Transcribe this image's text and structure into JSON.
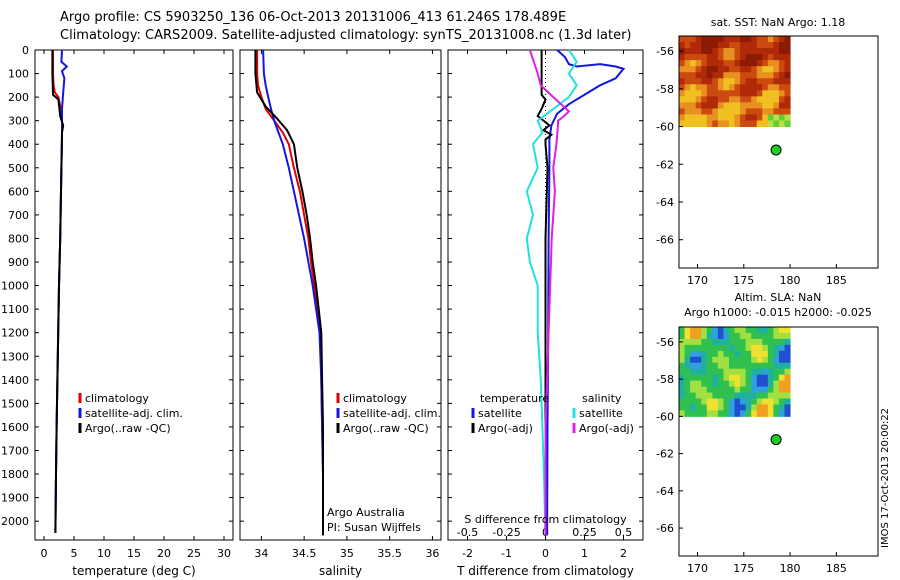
{
  "header": {
    "line1": "Argo profile: CS 5903250_136 06-Oct-2013 20131006_413 61.246S 178.489E",
    "line2": "Climatology: CARS2009. Satellite-adjusted climatology: synTS_20131008.nc (1.3d later)"
  },
  "stamp": "IMOS 17-Oct-2013 20:00:22",
  "colors": {
    "climatology": "#e00000",
    "satellite": "#1515e0",
    "argo": "#000000",
    "salinity_satellite": "#20e0e0",
    "salinity_argo": "#e020e0",
    "map_marker": "#22cc22"
  },
  "chart_data": [
    {
      "id": "temperature",
      "type": "line",
      "xlabel": "temperature (deg C)",
      "ylabel": "",
      "xlim": [
        -1.5,
        31.5
      ],
      "ylim": [
        0,
        2080
      ],
      "y_inverted": true,
      "xticks": [
        0,
        5,
        10,
        15,
        20,
        25,
        30
      ],
      "yticks": [
        0,
        100,
        200,
        300,
        400,
        500,
        600,
        700,
        800,
        900,
        1000,
        1100,
        1200,
        1300,
        1400,
        1500,
        1600,
        1700,
        1800,
        1900,
        2000
      ],
      "legend": {
        "position": "lower-right",
        "items": [
          "climatology",
          "satellite-adj. clim.",
          "Argo(..raw -QC)"
        ]
      },
      "series": [
        {
          "name": "climatology",
          "color_key": "climatology",
          "points": [
            [
              1.5,
              0
            ],
            [
              1.5,
              100
            ],
            [
              1.6,
              150
            ],
            [
              1.8,
              180
            ],
            [
              2.4,
              200
            ],
            [
              2.8,
              250
            ],
            [
              3.0,
              300
            ],
            [
              3.0,
              350
            ],
            [
              2.9,
              500
            ],
            [
              2.7,
              800
            ],
            [
              2.5,
              1000
            ],
            [
              2.3,
              1300
            ],
            [
              2.1,
              1600
            ],
            [
              2.0,
              1800
            ],
            [
              1.9,
              2050
            ]
          ]
        },
        {
          "name": "satellite-adj. clim.",
          "color_key": "satellite",
          "points": [
            [
              3.0,
              0
            ],
            [
              2.9,
              50
            ],
            [
              3.8,
              70
            ],
            [
              3.0,
              90
            ],
            [
              3.4,
              120
            ],
            [
              3.2,
              180
            ],
            [
              3.0,
              250
            ],
            [
              3.0,
              300
            ],
            [
              3.0,
              350
            ],
            [
              2.9,
              500
            ],
            [
              2.7,
              800
            ],
            [
              2.5,
              1000
            ],
            [
              2.3,
              1300
            ],
            [
              2.1,
              1600
            ],
            [
              2.0,
              1800
            ],
            [
              1.9,
              2050
            ]
          ]
        },
        {
          "name": "Argo(..raw -QC)",
          "color_key": "argo",
          "points": [
            [
              1.4,
              0
            ],
            [
              1.4,
              100
            ],
            [
              1.5,
              190
            ],
            [
              2.4,
              210
            ],
            [
              2.7,
              280
            ],
            [
              3.2,
              320
            ],
            [
              3.0,
              350
            ],
            [
              3.0,
              380
            ],
            [
              2.9,
              500
            ],
            [
              2.7,
              800
            ],
            [
              2.5,
              1000
            ],
            [
              2.3,
              1300
            ],
            [
              2.1,
              1600
            ],
            [
              2.0,
              1800
            ],
            [
              1.9,
              2050
            ]
          ]
        }
      ]
    },
    {
      "id": "salinity",
      "type": "line",
      "xlabel": "salinity",
      "ylabel": "",
      "xlim": [
        33.75,
        36.1
      ],
      "ylim": [
        0,
        2080
      ],
      "y_inverted": true,
      "xticks": [
        34,
        34.5,
        35,
        35.5,
        36
      ],
      "legend": {
        "position": "lower-right",
        "items": [
          "climatology",
          "satellite-adj. clim.",
          "Argo(..raw -QC)"
        ]
      },
      "annotations": [
        "Argo Australia",
        "PI: Susan Wijffels"
      ],
      "series": [
        {
          "name": "climatology",
          "color_key": "climatology",
          "points": [
            [
              33.95,
              0
            ],
            [
              33.95,
              100
            ],
            [
              33.96,
              150
            ],
            [
              34.0,
              200
            ],
            [
              34.05,
              250
            ],
            [
              34.15,
              300
            ],
            [
              34.25,
              350
            ],
            [
              34.32,
              400
            ],
            [
              34.38,
              500
            ],
            [
              34.45,
              600
            ],
            [
              34.5,
              700
            ],
            [
              34.55,
              800
            ],
            [
              34.58,
              900
            ],
            [
              34.62,
              1000
            ],
            [
              34.66,
              1100
            ],
            [
              34.69,
              1200
            ],
            [
              34.7,
              1400
            ],
            [
              34.71,
              1600
            ],
            [
              34.72,
              1800
            ],
            [
              34.72,
              2060
            ]
          ]
        },
        {
          "name": "satellite-adj. clim.",
          "color_key": "satellite",
          "points": [
            [
              34.02,
              0
            ],
            [
              34.03,
              100
            ],
            [
              34.05,
              150
            ],
            [
              34.08,
              200
            ],
            [
              34.12,
              260
            ],
            [
              34.15,
              300
            ],
            [
              34.2,
              350
            ],
            [
              34.25,
              400
            ],
            [
              34.32,
              500
            ],
            [
              34.38,
              600
            ],
            [
              34.44,
              700
            ],
            [
              34.5,
              800
            ],
            [
              34.55,
              900
            ],
            [
              34.6,
              1000
            ],
            [
              34.64,
              1100
            ],
            [
              34.68,
              1200
            ],
            [
              34.7,
              1400
            ],
            [
              34.71,
              1600
            ],
            [
              34.72,
              1800
            ],
            [
              34.72,
              2060
            ]
          ]
        },
        {
          "name": "Argo(..raw -QC)",
          "color_key": "argo",
          "points": [
            [
              33.93,
              0
            ],
            [
              33.93,
              100
            ],
            [
              33.95,
              180
            ],
            [
              34.05,
              240
            ],
            [
              34.18,
              290
            ],
            [
              34.3,
              340
            ],
            [
              34.38,
              400
            ],
            [
              34.42,
              500
            ],
            [
              34.48,
              600
            ],
            [
              34.53,
              700
            ],
            [
              34.57,
              800
            ],
            [
              34.6,
              900
            ],
            [
              34.64,
              1000
            ],
            [
              34.67,
              1100
            ],
            [
              34.7,
              1200
            ],
            [
              34.71,
              1400
            ],
            [
              34.72,
              1600
            ],
            [
              34.72,
              1800
            ],
            [
              34.72,
              2060
            ]
          ]
        }
      ]
    },
    {
      "id": "difference",
      "type": "line",
      "xlabel": "T difference from climatology",
      "xlabel_top": "S difference from climatology",
      "xlim": [
        -2.5,
        2.5
      ],
      "ylim": [
        0,
        2080
      ],
      "y_inverted": true,
      "xticks": [
        -2,
        -1,
        0,
        1,
        2
      ],
      "xticks_top": [
        -0.5,
        -0.25,
        0,
        0.25,
        0.5
      ],
      "legend": {
        "columns": [
          {
            "title": "temperature",
            "items": [
              "satellite",
              "Argo(-adj)"
            ],
            "color_keys": [
              "satellite",
              "argo"
            ]
          },
          {
            "title": "salinity",
            "items": [
              "satellite",
              "Argo(-adj)"
            ],
            "color_keys": [
              "salinity_satellite",
              "salinity_argo"
            ]
          }
        ]
      },
      "series": [
        {
          "name": "temperature satellite",
          "color_key": "satellite",
          "points": [
            [
              0.3,
              0
            ],
            [
              0.5,
              30
            ],
            [
              0.6,
              60
            ],
            [
              0.8,
              70
            ],
            [
              1.4,
              60
            ],
            [
              1.8,
              70
            ],
            [
              2.0,
              80
            ],
            [
              1.8,
              120
            ],
            [
              1.4,
              150
            ],
            [
              1.1,
              180
            ],
            [
              0.6,
              230
            ],
            [
              0.3,
              270
            ],
            [
              0.15,
              320
            ],
            [
              0.1,
              380
            ],
            [
              0.1,
              500
            ],
            [
              0.08,
              800
            ],
            [
              0.07,
              1200
            ],
            [
              0.05,
              1600
            ],
            [
              0.04,
              2060
            ]
          ]
        },
        {
          "name": "temperature Argo(-adj)",
          "color_key": "argo",
          "points": [
            [
              -0.1,
              0
            ],
            [
              -0.1,
              100
            ],
            [
              -0.1,
              190
            ],
            [
              0.0,
              210
            ],
            [
              -0.1,
              250
            ],
            [
              -0.2,
              280
            ],
            [
              0.1,
              320
            ],
            [
              -0.05,
              340
            ],
            [
              0.15,
              360
            ],
            [
              0.0,
              380
            ],
            [
              0.0,
              400
            ],
            [
              0.05,
              500
            ],
            [
              0.0,
              800
            ],
            [
              0.0,
              1200
            ],
            [
              0.0,
              1600
            ],
            [
              0.0,
              2060
            ]
          ]
        },
        {
          "name": "salinity satellite",
          "color_key": "salinity_satellite",
          "points": [
            [
              0.15,
              0
            ],
            [
              0.2,
              50
            ],
            [
              0.15,
              100
            ],
            [
              0.2,
              150
            ],
            [
              0.15,
              200
            ],
            [
              0.05,
              250
            ],
            [
              -0.05,
              300
            ],
            [
              -0.02,
              350
            ],
            [
              -0.08,
              400
            ],
            [
              -0.05,
              500
            ],
            [
              -0.12,
              600
            ],
            [
              -0.08,
              700
            ],
            [
              -0.12,
              800
            ],
            [
              -0.1,
              900
            ],
            [
              -0.05,
              1000
            ],
            [
              -0.05,
              1200
            ],
            [
              -0.03,
              1400
            ],
            [
              -0.02,
              1600
            ],
            [
              -0.01,
              1800
            ],
            [
              0.0,
              2060
            ]
          ]
        },
        {
          "name": "salinity Argo(-adj)",
          "color_key": "salinity_argo",
          "points": [
            [
              -0.1,
              0
            ],
            [
              -0.05,
              100
            ],
            [
              -0.03,
              150
            ],
            [
              0.05,
              200
            ],
            [
              0.1,
              230
            ],
            [
              0.15,
              260
            ],
            [
              0.12,
              280
            ],
            [
              0.08,
              300
            ],
            [
              0.08,
              320
            ],
            [
              0.07,
              400
            ],
            [
              0.05,
              500
            ],
            [
              0.06,
              600
            ],
            [
              0.04,
              800
            ],
            [
              0.03,
              1000
            ],
            [
              0.02,
              1200
            ],
            [
              0.01,
              1400
            ],
            [
              0.0,
              1600
            ],
            [
              0.0,
              1800
            ],
            [
              0.0,
              2060
            ]
          ]
        }
      ]
    },
    {
      "id": "sst_map",
      "type": "heatmap",
      "title": "sat. SST: NaN Argo: 1.18",
      "xlim": [
        168,
        189.5
      ],
      "ylim": [
        -67.5,
        -55.2
      ],
      "xticks": [
        170,
        175,
        180,
        185
      ],
      "yticks": [
        -56,
        -58,
        -60,
        -62,
        -64,
        -66
      ],
      "data_extent": {
        "lon": [
          168,
          180
        ],
        "lat": [
          -60,
          -55.2
        ]
      },
      "argo_position": {
        "lon": 178.489,
        "lat": -61.246
      }
    },
    {
      "id": "sla_map",
      "type": "heatmap",
      "title": "Altim. SLA: NaN",
      "subtitle": "Argo h1000: -0.015 h2000: -0.025",
      "xlim": [
        168,
        189.5
      ],
      "ylim": [
        -67.5,
        -55.2
      ],
      "xticks": [
        170,
        175,
        180,
        185
      ],
      "yticks": [
        -56,
        -58,
        -60,
        -62,
        -64,
        -66
      ],
      "data_extent": {
        "lon": [
          168,
          180
        ],
        "lat": [
          -60,
          -55.2
        ]
      },
      "argo_position": {
        "lon": 178.489,
        "lat": -61.246
      }
    }
  ]
}
